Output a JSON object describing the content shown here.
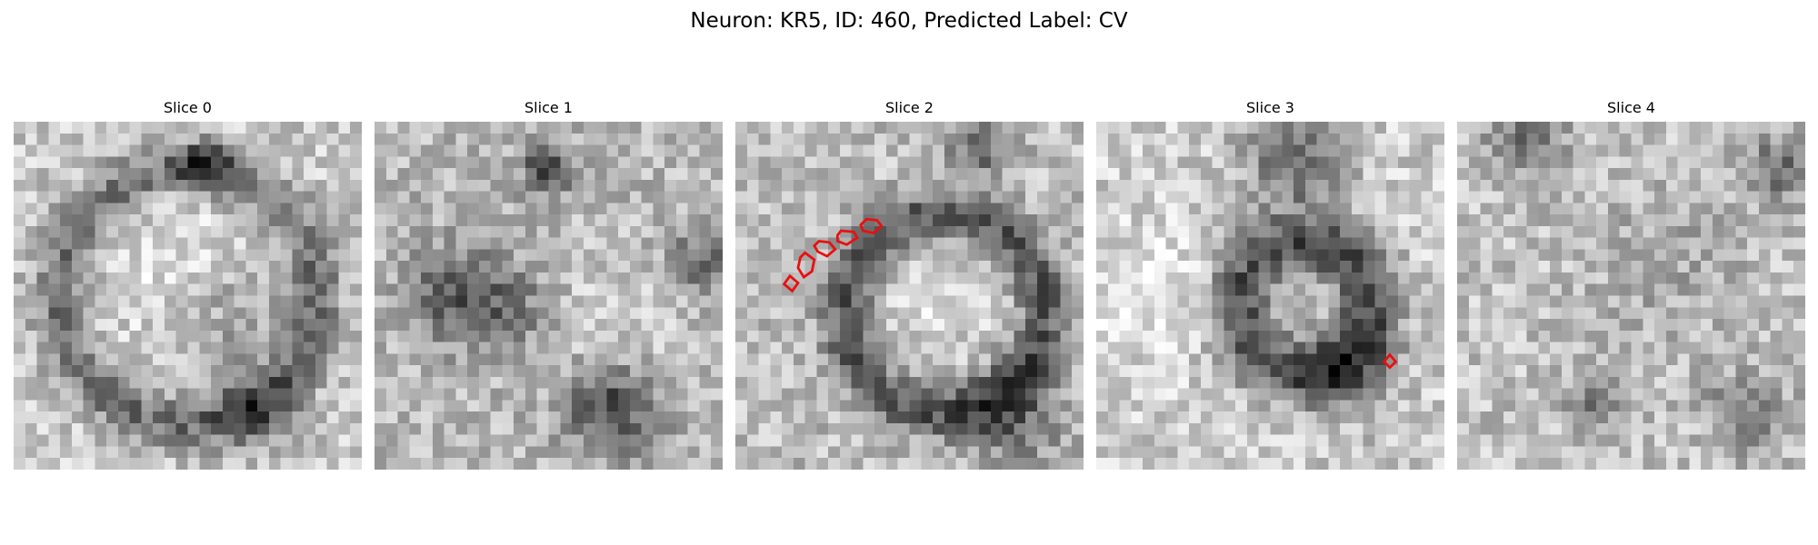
{
  "figure": {
    "title": "Neuron: KR5, ID: 460, Predicted Label: CV"
  },
  "panels": [
    {
      "title": "Slice 0"
    },
    {
      "title": "Slice 1"
    },
    {
      "title": "Slice 2"
    },
    {
      "title": "Slice 3"
    },
    {
      "title": "Slice 4"
    }
  ],
  "colors": {
    "contour": "#e81010",
    "background": "#ffffff",
    "colormap": "grayscale"
  }
}
